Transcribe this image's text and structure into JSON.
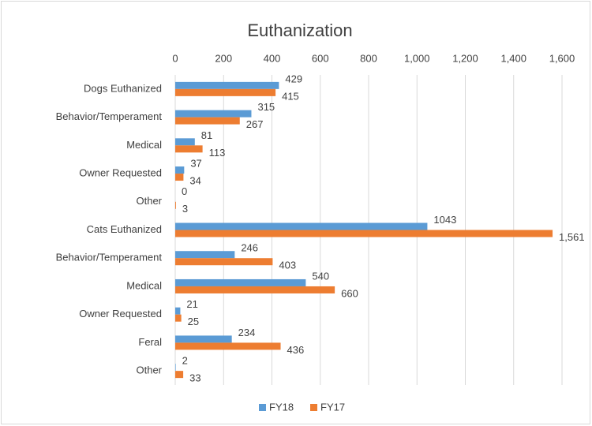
{
  "chart_data": {
    "type": "hbar",
    "title": "Euthanization",
    "categories": [
      "Dogs Euthanized",
      "Behavior/Temperament",
      "Medical",
      "Owner Requested",
      "Other",
      "Cats Euthanized",
      "Behavior/Temperament",
      "Medical",
      "Owner Requested",
      "Feral",
      "Other"
    ],
    "series": [
      {
        "name": "FY18",
        "color": "#5b9bd5",
        "values": [
          429,
          315,
          81,
          37,
          0,
          1043,
          246,
          540,
          21,
          234,
          2
        ]
      },
      {
        "name": "FY17",
        "color": "#ed7d31",
        "values": [
          415,
          267,
          113,
          34,
          3,
          1561,
          403,
          660,
          25,
          436,
          33
        ],
        "value_labels": [
          "415",
          "267",
          "113",
          "34",
          "3",
          "1,561",
          "403",
          "660",
          "25",
          "436",
          "33"
        ]
      }
    ],
    "xlim": [
      0,
      1600
    ],
    "xticks": [
      0,
      200,
      400,
      600,
      800,
      {
        "value": 1000,
        "label": "1,000"
      },
      {
        "value": 1200,
        "label": "1,200"
      },
      {
        "value": 1400,
        "label": "1,400"
      },
      {
        "value": 1600,
        "label": "1,600"
      }
    ],
    "grid": true,
    "legend": "bottom"
  }
}
